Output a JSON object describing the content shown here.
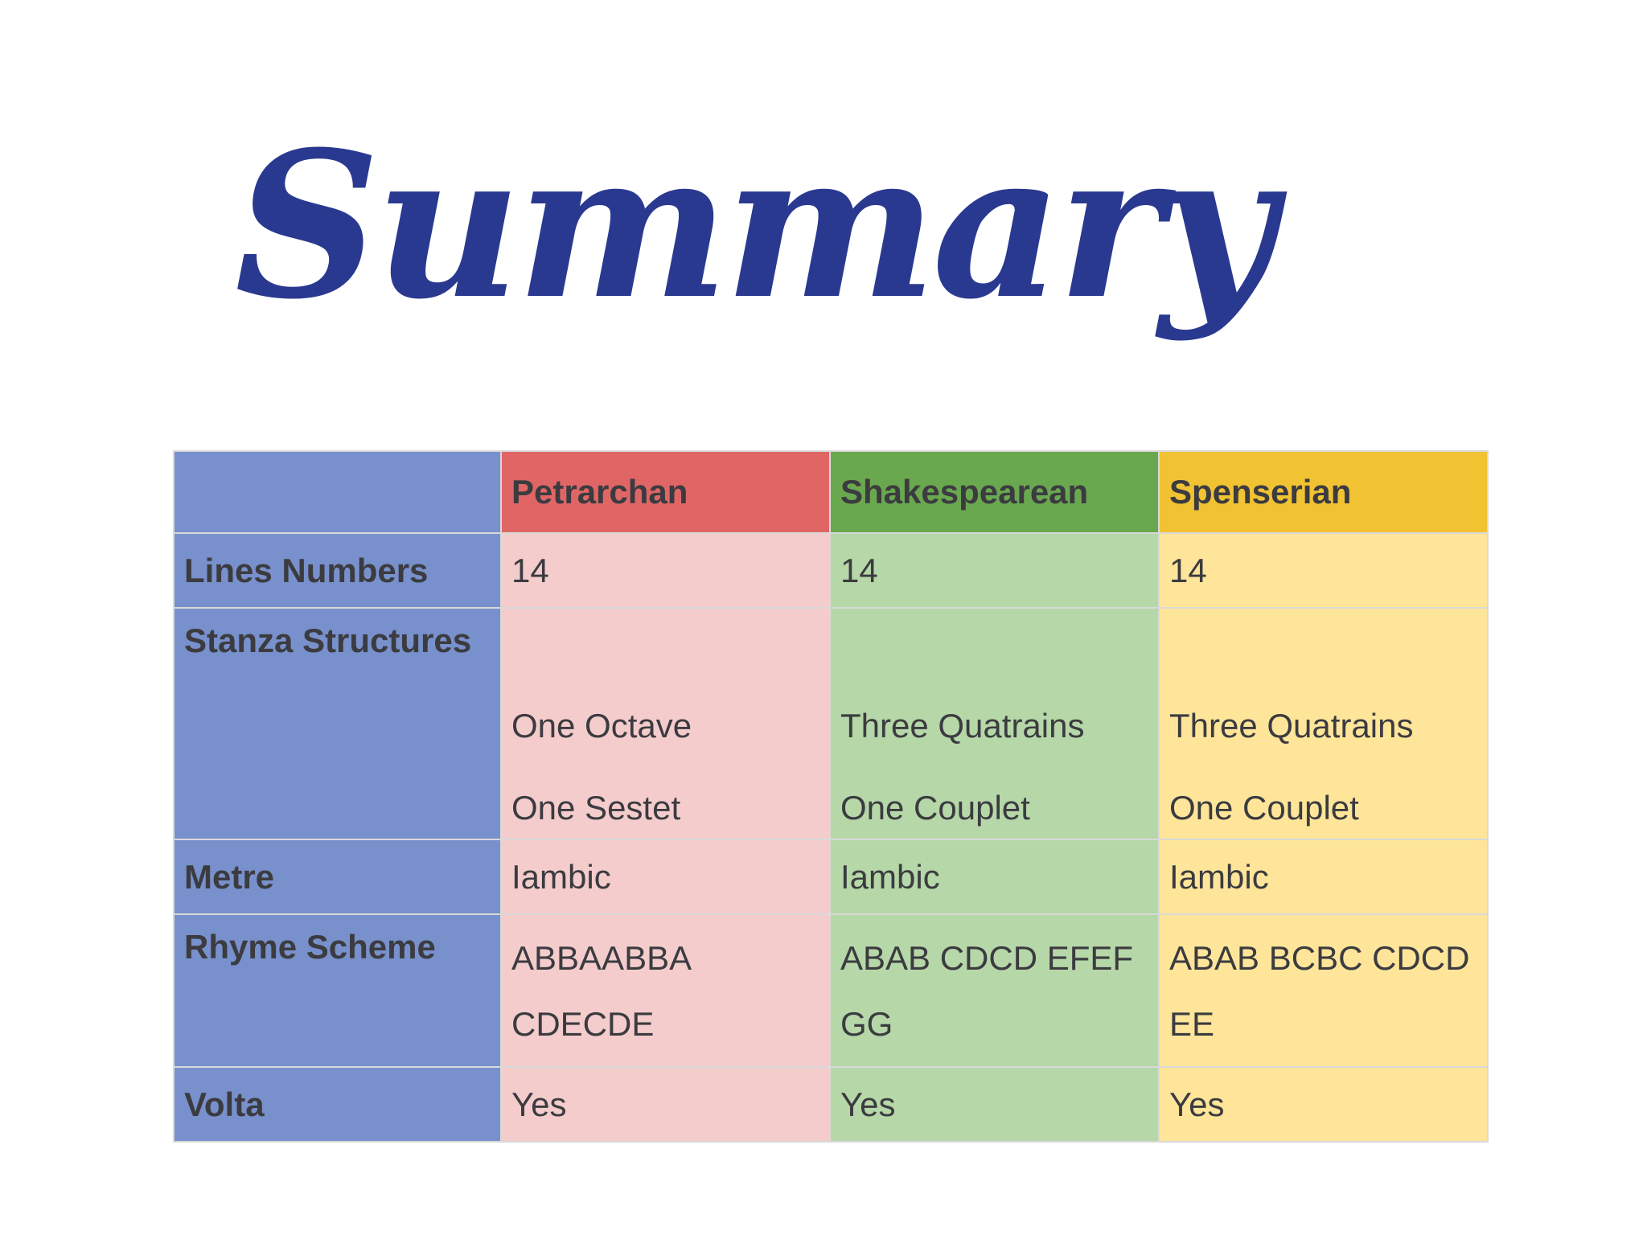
{
  "title": "Summary",
  "table": {
    "headers": [
      "",
      "Petrarchan",
      "Shakespearean",
      "Spenserian"
    ],
    "rows": [
      {
        "label": "Lines Numbers",
        "cells": [
          "14",
          "14",
          "14"
        ]
      },
      {
        "label": "Stanza Structures",
        "cells": [
          {
            "first": "One Octave",
            "second": "One Sestet"
          },
          {
            "first": "Three Quatrains",
            "second": "One Couplet"
          },
          {
            "first": "Three Quatrains",
            "second": "One Couplet"
          }
        ]
      },
      {
        "label": "Metre",
        "cells": [
          "Iambic",
          "Iambic",
          "Iambic"
        ]
      },
      {
        "label": "Rhyme Scheme",
        "cells": [
          "ABBAABBA CDECDE",
          "ABAB CDCD EFEF GG",
          "ABAB BCBC CDCD EE"
        ]
      },
      {
        "label": "Volta",
        "cells": [
          "Yes",
          "Yes",
          "Yes"
        ]
      }
    ]
  },
  "colors": {
    "title": "#2a3990",
    "label_column": "#7890cb",
    "petrarchan_header": "#e06666",
    "shakespearean_header": "#6aa84f",
    "spenserian_header": "#f1c232",
    "petrarchan_cell": "#f4cccc",
    "shakespearean_cell": "#b6d7a8",
    "spenserian_cell": "#ffe599"
  }
}
